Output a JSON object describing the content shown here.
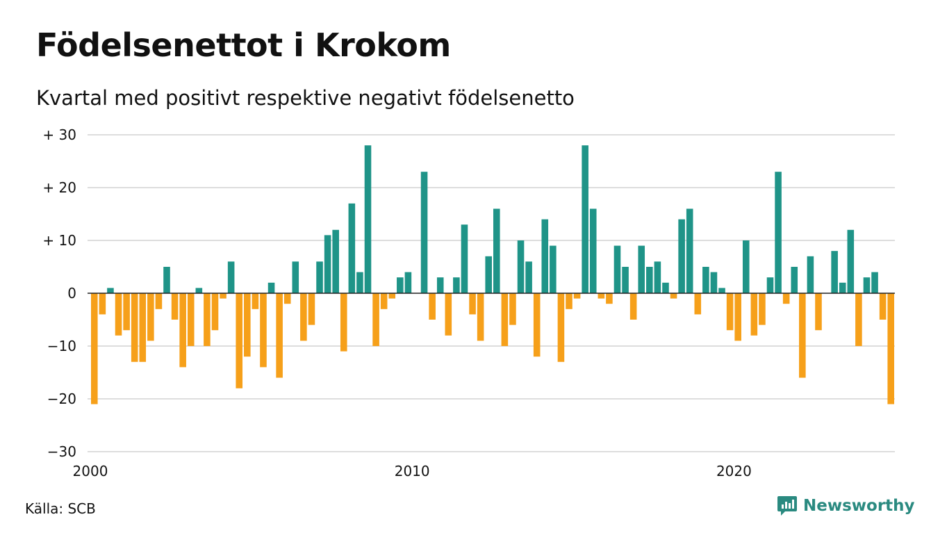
{
  "title": "Födelsenettot i Krokom",
  "subtitle": "Kvartal med positivt respektive negativt födelsenetto",
  "source": "Källa: SCB",
  "brand": "Newsworthy",
  "chart_data": {
    "type": "bar",
    "title": "Födelsenettot i Krokom",
    "subtitle": "Kvartal med positivt respektive negativt födelsenetto",
    "xlabel": "",
    "ylabel": "",
    "ylim": [
      -30,
      30
    ],
    "y_ticks": [
      30,
      20,
      10,
      0,
      -10,
      -20,
      -30
    ],
    "y_tick_labels": [
      "+ 30",
      "+ 20",
      "+ 10",
      "0",
      "−10",
      "−20",
      "−30"
    ],
    "x_tick_labels": [
      "2000",
      "2010",
      "2020"
    ],
    "x_tick_quarter_index": [
      0,
      40,
      80
    ],
    "grid": true,
    "start": "2000 Q1",
    "frequency": "quarter",
    "colors": {
      "positive": "#1f9488",
      "negative": "#f6a01a",
      "grid": "#dddddd",
      "zero": "#222222"
    },
    "values": [
      -21,
      -4,
      1,
      -8,
      -7,
      -13,
      -13,
      -9,
      -3,
      5,
      -5,
      -14,
      -10,
      1,
      -10,
      -7,
      -1,
      6,
      -18,
      -12,
      -3,
      -14,
      2,
      -16,
      -2,
      6,
      -9,
      -6,
      6,
      11,
      12,
      -11,
      17,
      4,
      28,
      -10,
      -3,
      -1,
      3,
      4,
      0,
      23,
      -5,
      3,
      -8,
      3,
      13,
      -4,
      -9,
      7,
      16,
      -10,
      -6,
      10,
      6,
      -12,
      14,
      9,
      -13,
      -3,
      -1,
      28,
      16,
      -1,
      -2,
      9,
      5,
      -5,
      9,
      5,
      6,
      2,
      -1,
      14,
      16,
      -4,
      5,
      4,
      1,
      -7,
      -9,
      10,
      -8,
      -6,
      3,
      23,
      -2,
      5,
      -16,
      7,
      -7,
      0,
      8,
      2,
      12,
      -10,
      3,
      4,
      -5,
      -21
    ]
  }
}
